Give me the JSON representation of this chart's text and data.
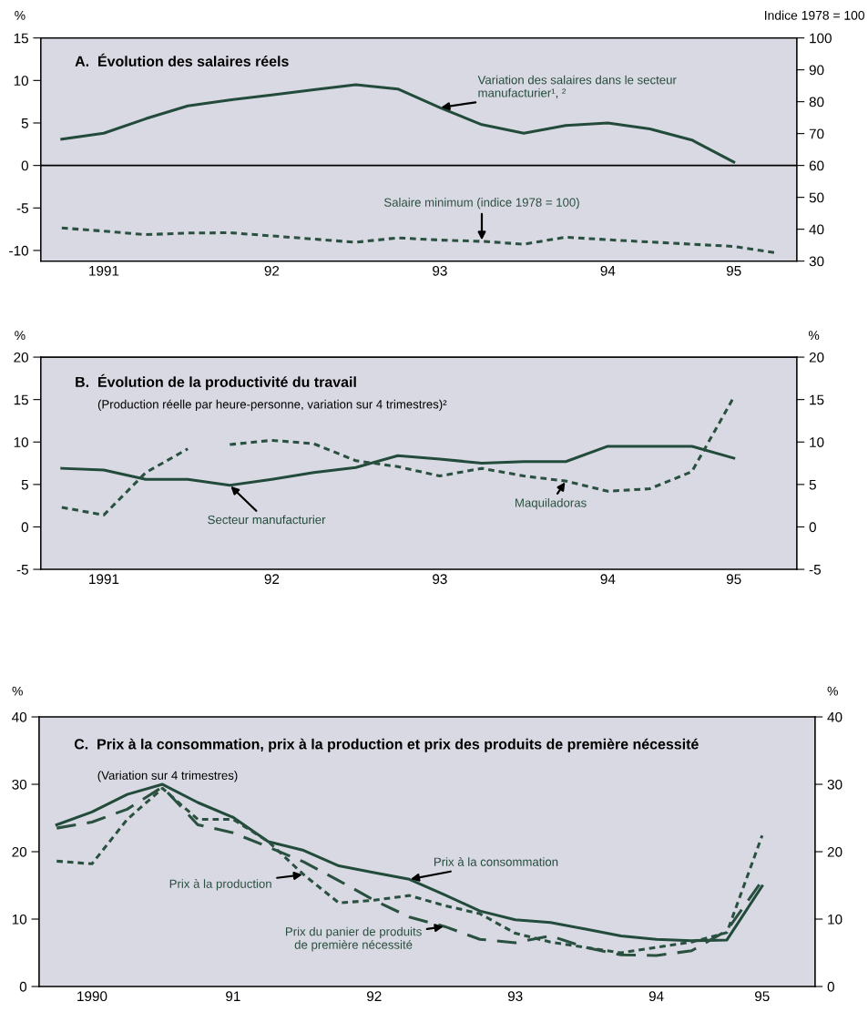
{
  "chart_data": [
    {
      "type": "line",
      "title": "A.  Évolution des salaires réels",
      "ylabel": "%",
      "y2label": "Indice 1978 = 100",
      "categories": [
        null,
        "1991",
        null,
        null,
        null,
        "92",
        null,
        null,
        null,
        "93",
        null,
        null,
        null,
        "94",
        null,
        null,
        "95",
        null
      ],
      "ylim": [
        -11.25,
        15
      ],
      "yticks": [
        -10,
        -5,
        0,
        5,
        10,
        15
      ],
      "y2lim": [
        30,
        100
      ],
      "y2ticks": [
        30,
        40,
        50,
        60,
        70,
        80,
        90,
        100
      ],
      "ref_lines": [
        {
          "axis": "y",
          "value": 0,
          "color": "#000000"
        }
      ],
      "series": [
        {
          "name": "Variation des salaires dans le secteur\nmanufacturier¹, ²",
          "color": "#234b3b",
          "line_style": "solid",
          "values": [
            3.1,
            3.8,
            5.5,
            7.0,
            7.7,
            8.3,
            8.9,
            9.5,
            9.0,
            6.8,
            4.8,
            3.8,
            4.7,
            5.0,
            4.3,
            3.0,
            0.4,
            null
          ]
        },
        {
          "name": "Salaire minimum (indice 1978 = 100)",
          "color": "#2a5040",
          "line_style": "dotted",
          "axis": "y2",
          "values": [
            40.4,
            39.4,
            38.3,
            38.8,
            38.9,
            37.9,
            36.9,
            35.9,
            37.3,
            36.6,
            36.2,
            35.3,
            37.5,
            36.7,
            36.0,
            35.3,
            34.6,
            32.6
          ]
        }
      ]
    },
    {
      "type": "line",
      "title": "B.  Évolution de la productivité du travail",
      "subtitle": "(Production réelle par heure-personne, variation sur 4 trimestres)²",
      "ylabel": "%",
      "y2label": "%",
      "categories": [
        null,
        "1991",
        null,
        null,
        null,
        "92",
        null,
        null,
        null,
        "93",
        null,
        null,
        null,
        "94",
        null,
        null,
        "95",
        null
      ],
      "ylim": [
        -5,
        20
      ],
      "yticks": [
        -5,
        0,
        5,
        10,
        15,
        20
      ],
      "y2lim": [
        -5,
        20
      ],
      "y2ticks": [
        -5,
        0,
        5,
        10,
        15,
        20
      ],
      "series": [
        {
          "name": "Secteur manufacturier",
          "color": "#234b3b",
          "line_style": "solid",
          "values": [
            6.9,
            6.7,
            5.6,
            5.6,
            4.9,
            5.6,
            6.4,
            7.0,
            8.4,
            8.0,
            7.5,
            7.7,
            7.7,
            9.5,
            9.5,
            9.5,
            8.1,
            null
          ]
        },
        {
          "color": "#2a5040",
          "line_style": "dotted",
          "values": [
            2.3,
            1.4,
            6.4,
            9.2,
            null,
            null,
            null,
            null,
            null,
            null,
            null,
            null,
            null,
            null,
            null,
            null,
            null,
            null
          ]
        },
        {
          "name": "Maquiladoras",
          "color": "#2a5040",
          "line_style": "dotted",
          "values": [
            null,
            null,
            null,
            null,
            9.7,
            10.2,
            9.8,
            7.8,
            7.1,
            6.0,
            6.9,
            6.0,
            5.4,
            4.2,
            4.5,
            6.5,
            15.3,
            null
          ]
        }
      ]
    },
    {
      "type": "line",
      "title": "C.  Prix à la consommation, prix à la production et prix des produits de première nécessité",
      "subtitle": "(Variation sur 4 trimestres)",
      "ylabel": "%",
      "y2label": "%",
      "categories": [
        null,
        "1990",
        null,
        null,
        null,
        "91",
        null,
        null,
        null,
        "92",
        null,
        null,
        null,
        "93",
        null,
        null,
        null,
        "94",
        null,
        null,
        "95",
        null
      ],
      "ylim": [
        0,
        40
      ],
      "yticks": [
        0,
        10,
        20,
        30,
        40
      ],
      "y2lim": [
        0,
        40
      ],
      "y2ticks": [
        0,
        10,
        20,
        30,
        40
      ],
      "series": [
        {
          "name": "Prix à la consommation",
          "color": "#234b3b",
          "line_style": "solid",
          "values": [
            24.0,
            25.9,
            28.5,
            30.0,
            27.3,
            25.1,
            21.5,
            20.2,
            17.9,
            16.9,
            15.9,
            13.6,
            11.2,
            9.9,
            9.5,
            8.5,
            7.5,
            7.0,
            6.8,
            6.9,
            14.9,
            null
          ]
        },
        {
          "name": "Prix à la production",
          "color": "#2a5040",
          "line_style": "dotted",
          "values": [
            18.6,
            18.2,
            24.8,
            29.4,
            24.8,
            24.8,
            21.5,
            16.6,
            12.4,
            12.8,
            13.5,
            12.0,
            10.8,
            7.9,
            6.6,
            5.8,
            5.0,
            5.8,
            6.6,
            8.0,
            22.4,
            null
          ]
        },
        {
          "name": "Prix du panier de produits\nde première nécessité",
          "color": "#2a5040",
          "line_style": "dashed",
          "values": [
            23.5,
            24.4,
            26.3,
            29.6,
            24.0,
            22.8,
            20.7,
            18.5,
            15.7,
            12.8,
            10.3,
            8.9,
            7.0,
            6.5,
            7.5,
            5.8,
            4.7,
            4.6,
            5.3,
            8.3,
            15.7,
            null
          ]
        }
      ]
    }
  ]
}
